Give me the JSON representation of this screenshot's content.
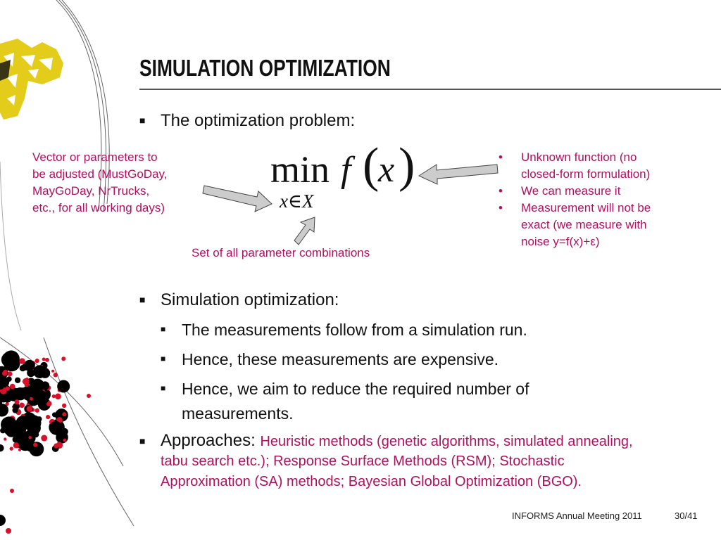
{
  "title": "SIMULATION OPTIMIZATION",
  "bullet_problem": "The optimization problem:",
  "formula": {
    "min": "min",
    "f": "f",
    "open": "(",
    "x": "x",
    "close": ")",
    "sub": "x∈X"
  },
  "annotations": {
    "left": [
      "Vector or parameters to",
      "be adjusted (MustGoDay,",
      "MayGoDay, NrTrucks,",
      "etc., for all working days)"
    ],
    "bottom": "Set of all parameter combinations",
    "right": [
      {
        "lines": [
          "Unknown function (no",
          "closed-form formulation)"
        ]
      },
      {
        "lines": [
          "We can measure it"
        ]
      },
      {
        "lines": [
          "Measurement will not be",
          "exact (we measure with",
          "noise y=f(x)+ε)"
        ]
      }
    ]
  },
  "bullet_sim": "Simulation optimization:",
  "sub_bullets": [
    "The measurements follow from a simulation run.",
    "Hence, these measurements are expensive.",
    "Hence, we aim to reduce the required number of",
    "measurements."
  ],
  "approaches": {
    "label": "Approaches:",
    "lines": [
      "Heuristic methods (genetic algorithms, simulated annealing,",
      "tabu search etc.); Response Surface Methods (RSM); Stochastic",
      "Approximation (SA) methods; Bayesian Global Optimization (BGO)."
    ]
  },
  "footer": {
    "event": "INFORMS Annual Meeting 2011",
    "page": "30/41"
  },
  "colors": {
    "accent": "#b0105f",
    "logo_yellow": "#e8d31e",
    "dots_red": "#d8102a"
  }
}
